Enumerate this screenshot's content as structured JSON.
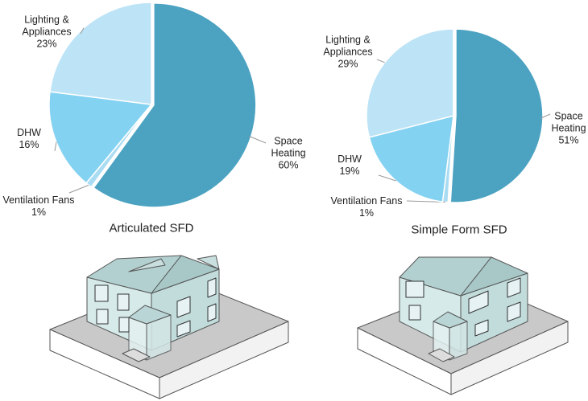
{
  "chart_data": [
    {
      "type": "pie",
      "title": "Articulated SFD",
      "categories": [
        "Space Heating",
        "Ventilation Fans",
        "DHW",
        "Lighting & Appliances"
      ],
      "values": [
        60,
        1,
        16,
        23
      ],
      "value_labels": [
        "60%",
        "1%",
        "16%",
        "23%"
      ],
      "colors": [
        "#4ba2c1",
        "#a9dcf2",
        "#84d2f1",
        "#bde3f6"
      ]
    },
    {
      "type": "pie",
      "title": "Simple Form SFD",
      "categories": [
        "Space Heating",
        "Ventilation Fans",
        "DHW",
        "Lighting & Appliances"
      ],
      "values": [
        51,
        1,
        19,
        29
      ],
      "value_labels": [
        "51%",
        "1%",
        "19%",
        "29%"
      ],
      "colors": [
        "#4ba2c1",
        "#a9dcf2",
        "#84d2f1",
        "#bde3f6"
      ]
    }
  ]
}
